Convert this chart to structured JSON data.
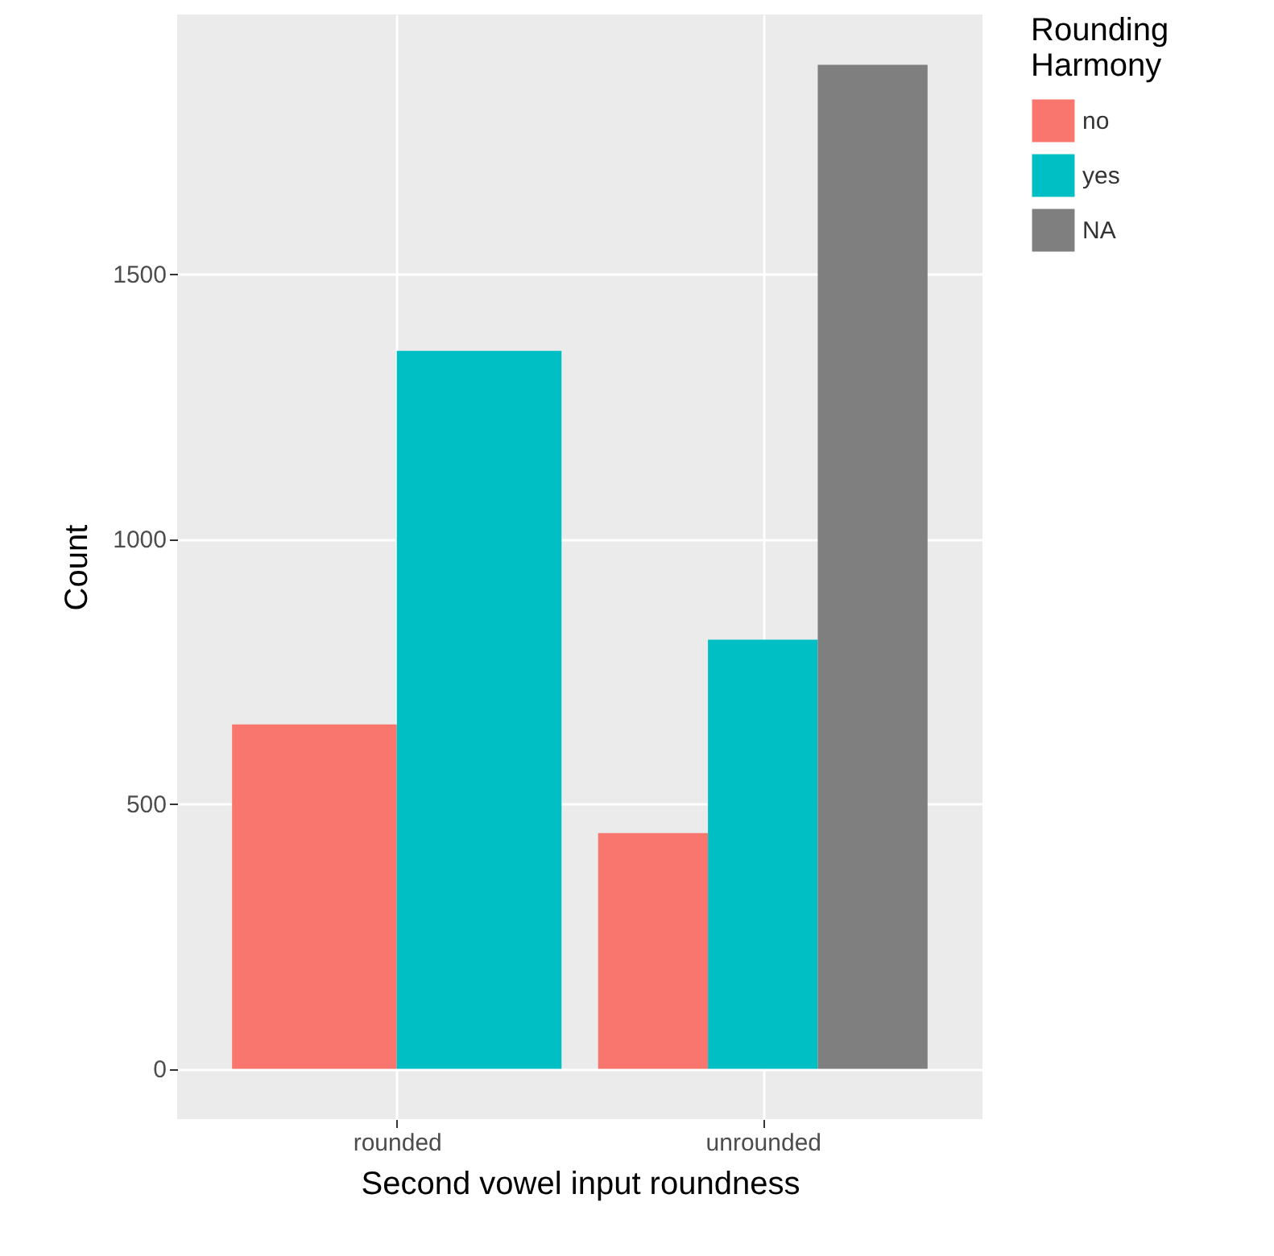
{
  "chart_data": {
    "type": "bar",
    "xlabel": "Second vowel input roundness",
    "ylabel": "Count",
    "legend_title": "Rounding Harmony",
    "categories": [
      "rounded",
      "unrounded"
    ],
    "series": [
      {
        "name": "no",
        "color": "#f8766d",
        "values": [
          650,
          445
        ]
      },
      {
        "name": "yes",
        "color": "#00bfc4",
        "values": [
          1355,
          810
        ]
      },
      {
        "name": "NA",
        "color": "#7f7f7f",
        "values": [
          null,
          1895
        ]
      }
    ],
    "ylim": [
      -95,
      1990
    ],
    "yticks": [
      0,
      500,
      1000,
      1500
    ],
    "grid": true,
    "legend": "right"
  }
}
